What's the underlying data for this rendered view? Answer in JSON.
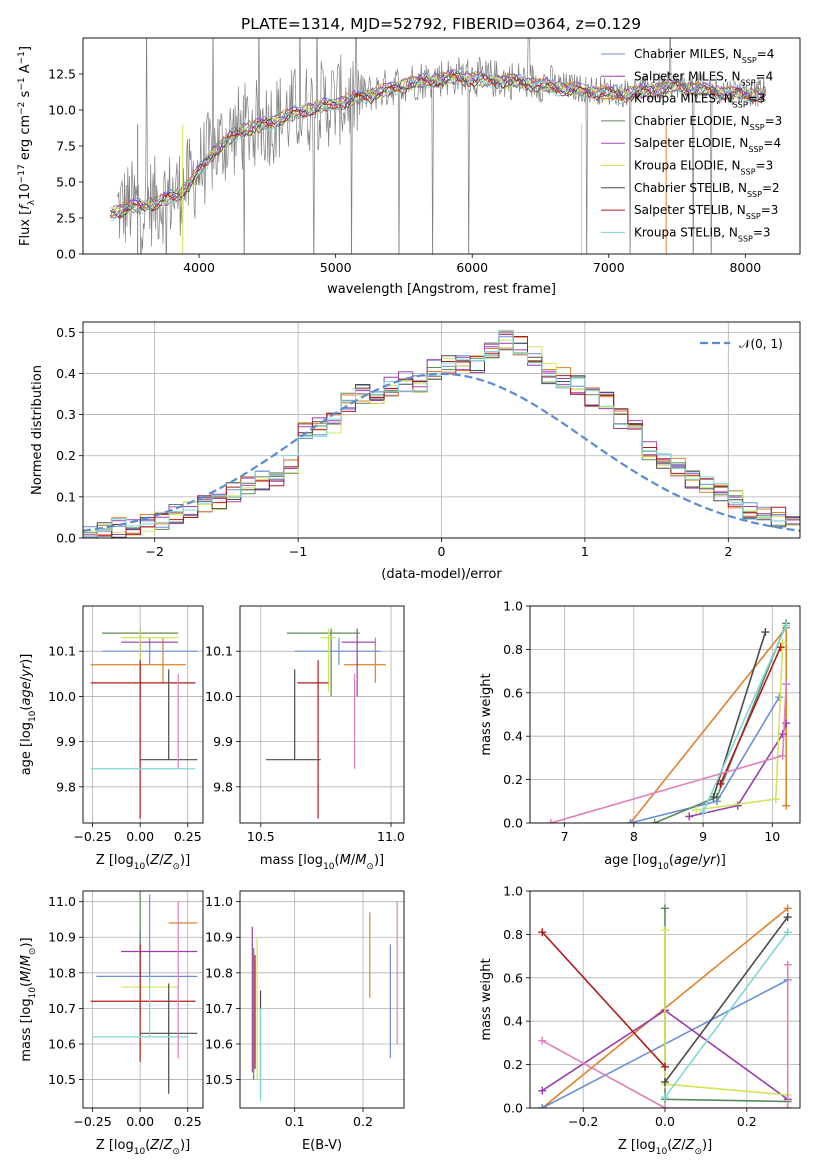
{
  "figure": {
    "title": "PLATE=1314, MJD=52792, FIBERID=0364, z=0.129",
    "colors": {
      "chabrier_miles": "#6b8fd6",
      "salpeter_miles": "#9b3dad",
      "kroupa_miles": "#e0822a",
      "chabrier_elodie": "#5c8a5c",
      "salpeter_elodie": "#a04ab0",
      "kroupa_elodie": "#cde85a",
      "chabrier_stelib": "#4a4a4a",
      "salpeter_stelib": "#b01c1c",
      "kroupa_stelib": "#7fd6d6",
      "pink": "#e07fb8",
      "observed": "#808080",
      "normal_curve": "#5b8bd0"
    }
  },
  "chart_data": [
    {
      "id": "spectrum",
      "type": "line",
      "xlabel": "wavelength [Angstrom, rest frame]",
      "ylabel": "Flux [f_λ 10^-17 erg cm^-2 s^-1 A^-1]",
      "xlim": [
        3150,
        8400
      ],
      "ylim": [
        0,
        15
      ],
      "xticks": [
        4000,
        5000,
        6000,
        7000,
        8000
      ],
      "yticks": [
        0.0,
        2.5,
        5.0,
        7.5,
        10.0,
        12.5
      ],
      "legend_position": "right",
      "legend": [
        {
          "label": "Chabrier MILES, N",
          "sub": "SSP",
          "tail": "=4",
          "color": "#6b8fd6"
        },
        {
          "label": "Salpeter MILES, N",
          "sub": "SSP",
          "tail": "=4",
          "color": "#9b3dad"
        },
        {
          "label": "Kroupa MILES, N",
          "sub": "SSP",
          "tail": "=3",
          "color": "#e0822a"
        },
        {
          "label": "Chabrier ELODIE, N",
          "sub": "SSP",
          "tail": "=3",
          "color": "#5c8a5c"
        },
        {
          "label": "Salpeter ELODIE, N",
          "sub": "SSP",
          "tail": "=4",
          "color": "#a04ab0"
        },
        {
          "label": "Kroupa ELODIE, N",
          "sub": "SSP",
          "tail": "=3",
          "color": "#cde85a"
        },
        {
          "label": "Chabrier STELIB, N",
          "sub": "SSP",
          "tail": "=2",
          "color": "#4a4a4a"
        },
        {
          "label": "Salpeter STELIB, N",
          "sub": "SSP",
          "tail": "=3",
          "color": "#b01c1c"
        },
        {
          "label": "Kroupa STELIB, N",
          "sub": "SSP",
          "tail": "=3",
          "color": "#7fd6d6"
        }
      ],
      "model_continuum": {
        "x": [
          3350,
          3500,
          3700,
          3850,
          3950,
          4100,
          4300,
          4500,
          4700,
          4900,
          5100,
          5300,
          5500,
          5700,
          5900,
          6100,
          6300,
          6500,
          6700,
          6900,
          7100,
          7300,
          7500,
          7700,
          7900,
          8100
        ],
        "y": [
          3.0,
          3.4,
          3.7,
          4.3,
          5.2,
          7.2,
          8.7,
          9.2,
          9.9,
          10.4,
          10.8,
          11.3,
          11.9,
          12.2,
          12.4,
          12.2,
          12.1,
          11.9,
          11.6,
          11.4,
          11.2,
          11.5,
          11.8,
          11.5,
          11.3,
          11.2
        ]
      }
    },
    {
      "id": "residuals",
      "type": "step",
      "xlabel": "(data-model)/error",
      "ylabel": "Normed distribution",
      "xlim": [
        -2.5,
        2.5
      ],
      "ylim": [
        0,
        0.525
      ],
      "xticks": [
        -2,
        -1,
        0,
        1,
        2
      ],
      "yticks": [
        0.0,
        0.1,
        0.2,
        0.3,
        0.4,
        0.5
      ],
      "legend_position": "top-right",
      "legend": [
        {
          "label": "𝒩(0, 1)",
          "color": "#5b8bd0",
          "style": "dashed"
        }
      ],
      "bin_width": 0.1,
      "bins_start": -2.5,
      "base_distribution": [
        0.02,
        0.025,
        0.025,
        0.03,
        0.035,
        0.04,
        0.06,
        0.07,
        0.08,
        0.09,
        0.11,
        0.13,
        0.14,
        0.15,
        0.18,
        0.26,
        0.27,
        0.28,
        0.33,
        0.35,
        0.35,
        0.37,
        0.38,
        0.37,
        0.41,
        0.42,
        0.43,
        0.42,
        0.45,
        0.48,
        0.47,
        0.44,
        0.4,
        0.39,
        0.37,
        0.34,
        0.33,
        0.29,
        0.27,
        0.21,
        0.19,
        0.17,
        0.14,
        0.13,
        0.11,
        0.09,
        0.07,
        0.06,
        0.05,
        0.045
      ]
    },
    {
      "id": "z_vs_age",
      "type": "errorbar",
      "xlabel": "Z [log10(Z/Z⊙)]",
      "ylabel": "age [log10(age/yr)]",
      "xlim": [
        -0.3,
        0.33
      ],
      "ylim": [
        9.72,
        10.2
      ],
      "xticks": [
        -0.25,
        0.0,
        0.25
      ],
      "xtick_labels": [
        "−0.25",
        "0.00",
        "0.25"
      ],
      "yticks": [
        9.8,
        9.9,
        10.0,
        10.1
      ],
      "points": [
        {
          "x": 0.12,
          "y": 10.07,
          "ex": [
            0.38,
            0.12
          ],
          "ey": [
            0.04,
            0.06
          ],
          "color": "#e0822a"
        },
        {
          "x": 0.05,
          "y": 10.1,
          "ex": [
            0.25,
            0.25
          ],
          "ey": [
            0.03,
            0.03
          ],
          "color": "#6b8fd6"
        },
        {
          "x": 0.0,
          "y": 10.12,
          "ex": [
            0.1,
            0.2
          ],
          "ey": [
            0.12,
            0.03
          ],
          "color": "#9b3dad"
        },
        {
          "x": 0.0,
          "y": 10.14,
          "ex": [
            0.2,
            0.2
          ],
          "ey": [
            0.14,
            0.01
          ],
          "color": "#5c8a5c"
        },
        {
          "x": 0.0,
          "y": 10.13,
          "ex": [
            0.1,
            0.2
          ],
          "ey": [
            0.12,
            0.02
          ],
          "color": "#cde85a"
        },
        {
          "x": 0.0,
          "y": 10.03,
          "ex": [
            0.26,
            0.29
          ],
          "ey": [
            0.3,
            0.05
          ],
          "color": "#b01c1c"
        },
        {
          "x": 0.15,
          "y": 9.86,
          "ex": [
            0.15,
            0.15
          ],
          "ey": [
            0.0,
            0.2
          ],
          "color": "#4a4a4a"
        },
        {
          "x": 0.0,
          "y": 9.84,
          "ex": [
            0.26,
            0.29
          ],
          "ey": [
            0.0,
            0.0
          ],
          "color": "#7fd6d6"
        },
        {
          "x": 0.2,
          "y": 10.0,
          "ex": [
            0.0,
            0.0
          ],
          "ey": [
            0.16,
            0.05
          ],
          "color": "#e07fb8"
        }
      ]
    },
    {
      "id": "mass_vs_age",
      "type": "errorbar",
      "xlabel": "mass [log10(M/M⊙)]",
      "ylabel": "",
      "xlim": [
        10.42,
        11.05
      ],
      "ylim": [
        9.72,
        10.2
      ],
      "xticks": [
        10.5,
        11.0
      ],
      "xtick_labels": [
        "10.5",
        "11.0"
      ],
      "yticks": [
        9.8,
        9.9,
        10.0,
        10.1
      ],
      "points": [
        {
          "x": 10.94,
          "y": 10.07,
          "ex": [
            0.12,
            0.04
          ],
          "ey": [
            0.04,
            0.06
          ],
          "color": "#e0822a"
        },
        {
          "x": 10.8,
          "y": 10.1,
          "ex": [
            0.17,
            0.16
          ],
          "ey": [
            0.03,
            0.03
          ],
          "color": "#6b8fd6"
        },
        {
          "x": 10.87,
          "y": 10.12,
          "ex": [
            0.06,
            0.07
          ],
          "ey": [
            0.12,
            0.03
          ],
          "color": "#9b3dad"
        },
        {
          "x": 10.77,
          "y": 10.14,
          "ex": [
            0.17,
            0.11
          ],
          "ey": [
            0.14,
            0.01
          ],
          "color": "#5c8a5c"
        },
        {
          "x": 10.76,
          "y": 10.13,
          "ex": [
            0.03,
            0.03
          ],
          "ey": [
            0.12,
            0.02
          ],
          "color": "#cde85a"
        },
        {
          "x": 10.72,
          "y": 10.03,
          "ex": [
            0.08,
            0.04
          ],
          "ey": [
            0.3,
            0.05
          ],
          "color": "#b01c1c"
        },
        {
          "x": 10.63,
          "y": 9.86,
          "ex": [
            0.11,
            0.1
          ],
          "ey": [
            0.0,
            0.2
          ],
          "color": "#4a4a4a"
        },
        {
          "x": 10.62,
          "y": 9.84,
          "ex": [
            0.0,
            0.0
          ],
          "ey": [
            0.0,
            0.0
          ],
          "color": "#7fd6d6"
        },
        {
          "x": 10.86,
          "y": 10.0,
          "ex": [
            0.0,
            0.0
          ],
          "ey": [
            0.16,
            0.05
          ],
          "color": "#e07fb8"
        }
      ]
    },
    {
      "id": "age_weights",
      "type": "line",
      "xlabel": "age [log10(age/yr)]",
      "ylabel": "mass weight",
      "xlim": [
        6.5,
        10.4
      ],
      "ylim": [
        0,
        1
      ],
      "xticks": [
        7,
        8,
        9,
        10
      ],
      "yticks": [
        0.0,
        0.2,
        0.4,
        0.6,
        0.8,
        1.0
      ],
      "series": [
        {
          "color": "#e0822a",
          "x": [
            7.95,
            10.2,
            10.2
          ],
          "y": [
            0.0,
            0.9,
            0.08
          ]
        },
        {
          "color": "#6b8fd6",
          "x": [
            7.95,
            9.2,
            10.1
          ],
          "y": [
            0.0,
            0.1,
            0.58
          ]
        },
        {
          "color": "#9b3dad",
          "x": [
            8.8,
            9.5,
            10.15,
            10.2
          ],
          "y": [
            0.03,
            0.08,
            0.41,
            0.46
          ]
        },
        {
          "color": "#5c8a5c",
          "x": [
            8.3,
            9.2,
            10.2
          ],
          "y": [
            0.0,
            0.12,
            0.92
          ]
        },
        {
          "color": "#cde85a",
          "x": [
            8.9,
            10.05,
            10.15
          ],
          "y": [
            0.06,
            0.11,
            0.83
          ]
        },
        {
          "color": "#4a4a4a",
          "x": [
            9.15,
            9.9
          ],
          "y": [
            0.12,
            0.88
          ]
        },
        {
          "color": "#b01c1c",
          "x": [
            9.25,
            10.12
          ],
          "y": [
            0.18,
            0.81
          ]
        },
        {
          "color": "#7fd6d6",
          "x": [
            9.0,
            10.2
          ],
          "y": [
            0.05,
            0.91
          ]
        },
        {
          "color": "#e07fb8",
          "x": [
            6.8,
            10.15,
            10.2
          ],
          "y": [
            0.0,
            0.31,
            0.64
          ]
        }
      ]
    },
    {
      "id": "z_vs_mass",
      "type": "errorbar",
      "xlabel": "Z [log10(Z/Z⊙)]",
      "ylabel": "mass [log10(M/M⊙)]",
      "xlim": [
        -0.3,
        0.33
      ],
      "ylim": [
        10.42,
        11.03
      ],
      "xticks": [
        -0.25,
        0.0,
        0.25
      ],
      "xtick_labels": [
        "−0.25",
        "0.00",
        "0.25"
      ],
      "yticks": [
        10.5,
        10.6,
        10.7,
        10.8,
        10.9,
        11.0
      ],
      "points": [
        {
          "x": 0.25,
          "y": 10.94,
          "ex": [
            0.1,
            0.05
          ],
          "ey": [
            0.0,
            0.0
          ],
          "color": "#e0822a"
        },
        {
          "x": 0.05,
          "y": 10.79,
          "ex": [
            0.28,
            0.25
          ],
          "ey": [
            0.02,
            0.23
          ],
          "color": "#6b8fd6"
        },
        {
          "x": 0.0,
          "y": 10.86,
          "ex": [
            0.1,
            0.3
          ],
          "ey": [
            0.07,
            0.06
          ],
          "color": "#9b3dad"
        },
        {
          "x": 0.0,
          "y": 10.78,
          "ex": [
            0.0,
            0.0
          ],
          "ey": [
            0.1,
            0.28
          ],
          "color": "#5c8a5c"
        },
        {
          "x": 0.0,
          "y": 10.76,
          "ex": [
            0.1,
            0.2
          ],
          "ey": [
            0.2,
            0.03
          ],
          "color": "#cde85a"
        },
        {
          "x": 0.0,
          "y": 10.72,
          "ex": [
            0.26,
            0.29
          ],
          "ey": [
            0.17,
            0.16
          ],
          "color": "#b01c1c"
        },
        {
          "x": 0.15,
          "y": 10.63,
          "ex": [
            0.15,
            0.15
          ],
          "ey": [
            0.17,
            0.14
          ],
          "color": "#4a4a4a"
        },
        {
          "x": 0.05,
          "y": 10.62,
          "ex": [
            0.3,
            0.2
          ],
          "ey": [
            0.0,
            0.17
          ],
          "color": "#7fd6d6"
        },
        {
          "x": 0.2,
          "y": 10.8,
          "ex": [
            0.0,
            0.0
          ],
          "ey": [
            0.24,
            0.2
          ],
          "color": "#e07fb8"
        }
      ]
    },
    {
      "id": "ebv_vs_mass",
      "type": "errorbar",
      "xlabel": "E(B-V)",
      "ylabel": "",
      "xlim": [
        0.02,
        0.26
      ],
      "ylim": [
        10.42,
        11.03
      ],
      "xticks": [
        0.1,
        0.2
      ],
      "xtick_labels": [
        "0.1",
        "0.2"
      ],
      "yticks": [
        10.5,
        10.6,
        10.7,
        10.8,
        10.9,
        11.0
      ],
      "points": [
        {
          "x": 0.21,
          "y": 10.85,
          "ex": [
            0.0,
            0.0
          ],
          "ey": [
            0.12,
            0.12
          ],
          "color": "#e0822a"
        },
        {
          "x": 0.24,
          "y": 10.72,
          "ex": [
            0.0,
            0.0
          ],
          "ey": [
            0.16,
            0.16
          ],
          "color": "#6b8fd6"
        },
        {
          "x": 0.038,
          "y": 10.8,
          "ex": [
            0.0,
            0.0
          ],
          "ey": [
            0.28,
            0.13
          ],
          "color": "#9b3dad"
        },
        {
          "x": 0.04,
          "y": 10.7,
          "ex": [
            0.0,
            0.0
          ],
          "ey": [
            0.2,
            0.17
          ],
          "color": "#5c8a5c"
        },
        {
          "x": 0.045,
          "y": 10.7,
          "ex": [
            0.0,
            0.0
          ],
          "ey": [
            0.2,
            0.2
          ],
          "color": "#cde85a"
        },
        {
          "x": 0.042,
          "y": 10.75,
          "ex": [
            0.0,
            0.0
          ],
          "ey": [
            0.22,
            0.1
          ],
          "color": "#b01c1c"
        },
        {
          "x": 0.05,
          "y": 10.65,
          "ex": [
            0.0,
            0.0
          ],
          "ey": [
            0.2,
            0.1
          ],
          "color": "#4a4a4a"
        },
        {
          "x": 0.05,
          "y": 10.6,
          "ex": [
            0.0,
            0.0
          ],
          "ey": [
            0.16,
            0.1
          ],
          "color": "#7fd6d6"
        },
        {
          "x": 0.25,
          "y": 10.8,
          "ex": [
            0.0,
            0.0
          ],
          "ey": [
            0.2,
            0.2
          ],
          "color": "#e07fb8"
        }
      ]
    },
    {
      "id": "z_weights",
      "type": "line",
      "xlabel": "Z [log10(Z/Z⊙)]",
      "ylabel": "mass weight",
      "xlim": [
        -0.33,
        0.33
      ],
      "ylim": [
        0,
        1
      ],
      "xticks": [
        -0.2,
        0.0,
        0.2
      ],
      "xtick_labels": [
        "−0.2",
        "0.0",
        "0.2"
      ],
      "yticks": [
        0.0,
        0.2,
        0.4,
        0.6,
        0.8,
        1.0
      ],
      "series": [
        {
          "color": "#e0822a",
          "x": [
            -0.3,
            0.3
          ],
          "y": [
            0.0,
            0.92
          ]
        },
        {
          "color": "#6b8fd6",
          "x": [
            -0.3,
            0.3
          ],
          "y": [
            0.0,
            0.59
          ]
        },
        {
          "color": "#9b3dad",
          "x": [
            -0.3,
            0.0,
            0.3
          ],
          "y": [
            0.08,
            0.45,
            0.04
          ]
        },
        {
          "color": "#5c8a5c",
          "x": [
            0.0,
            0.0,
            0.3
          ],
          "y": [
            0.92,
            0.04,
            0.03
          ]
        },
        {
          "color": "#cde85a",
          "x": [
            0.0,
            0.0,
            0.3
          ],
          "y": [
            0.82,
            0.11,
            0.06
          ]
        },
        {
          "color": "#4a4a4a",
          "x": [
            0.0,
            0.3
          ],
          "y": [
            0.12,
            0.88
          ]
        },
        {
          "color": "#b01c1c",
          "x": [
            -0.3,
            0.0
          ],
          "y": [
            0.81,
            0.19
          ]
        },
        {
          "color": "#7fd6d6",
          "x": [
            0.0,
            0.3
          ],
          "y": [
            0.05,
            0.81
          ]
        },
        {
          "color": "#e07fb8",
          "x": [
            -0.3,
            0.0,
            0.3,
            0.3
          ],
          "y": [
            0.31,
            0.0,
            0.0,
            0.66
          ]
        }
      ]
    }
  ]
}
